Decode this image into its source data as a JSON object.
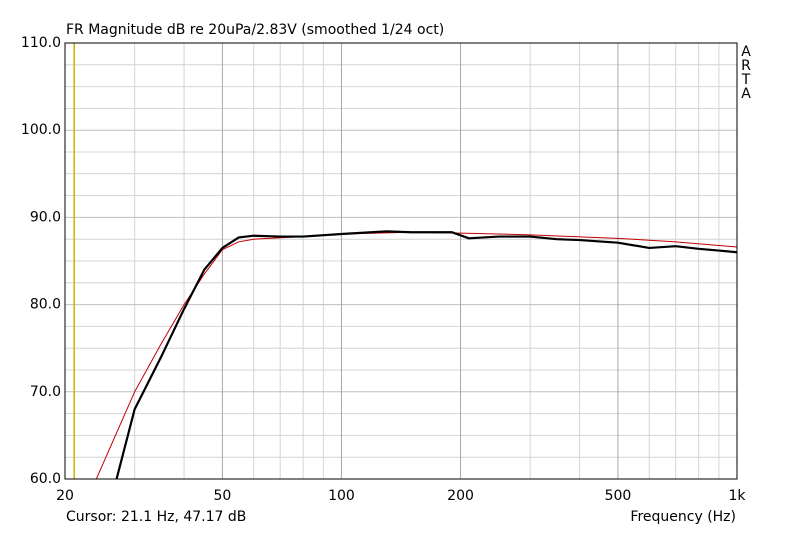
{
  "chart_data": {
    "type": "line",
    "title": "FR Magnitude dB re 20uPa/2.83V (smoothed 1/24 oct)",
    "brand": "ARTA",
    "cursor": {
      "label": "Cursor: 21.1 Hz, 47.17 dB",
      "x": 21.1,
      "color": "#c8b400"
    },
    "x_label": "Frequency (Hz)",
    "log_x": true,
    "grid": true,
    "xlim": [
      20,
      1000
    ],
    "ylim": [
      60,
      110
    ],
    "xticks": [
      20,
      50,
      100,
      200,
      500,
      {
        "value": 1000,
        "label": "1k"
      }
    ],
    "x_minor_ticks": [
      30,
      40,
      60,
      70,
      80,
      90,
      300,
      400,
      600,
      700,
      800,
      900
    ],
    "yticks": [
      {
        "value": 60,
        "label": "60.0"
      },
      {
        "value": 70,
        "label": "70.0"
      },
      {
        "value": 80,
        "label": "80.0"
      },
      {
        "value": 90,
        "label": "90.0"
      },
      {
        "value": 100,
        "label": "100.0"
      },
      {
        "value": 110,
        "label": "110.0"
      }
    ],
    "y_minor_ticks": [
      62.5,
      65,
      67.5,
      72.5,
      75,
      77.5,
      82.5,
      85,
      87.5,
      92.5,
      95,
      97.5,
      102.5,
      105,
      107.5
    ],
    "series": [
      {
        "color": "#c00000",
        "width": 1,
        "x": [
          24,
          30,
          35,
          40,
          45,
          50,
          55,
          60,
          80,
          100,
          150,
          200,
          300,
          500,
          700,
          1000
        ],
        "values": [
          60,
          70,
          75.5,
          80,
          83.5,
          86.3,
          87.2,
          87.5,
          87.8,
          88.1,
          88.3,
          88.2,
          88.0,
          87.6,
          87.2,
          86.6
        ]
      },
      {
        "color": "#000000",
        "width": 2.2,
        "x": [
          27,
          30,
          35,
          40,
          45,
          50,
          55,
          60,
          70,
          80,
          100,
          130,
          150,
          190,
          210,
          250,
          300,
          350,
          400,
          500,
          600,
          700,
          800,
          900,
          1000
        ],
        "values": [
          60,
          68,
          74,
          79.5,
          84,
          86.5,
          87.7,
          87.9,
          87.8,
          87.8,
          88.1,
          88.4,
          88.3,
          88.3,
          87.6,
          87.8,
          87.8,
          87.5,
          87.4,
          87.1,
          86.5,
          86.7,
          86.4,
          86.2,
          86.0
        ]
      }
    ]
  }
}
